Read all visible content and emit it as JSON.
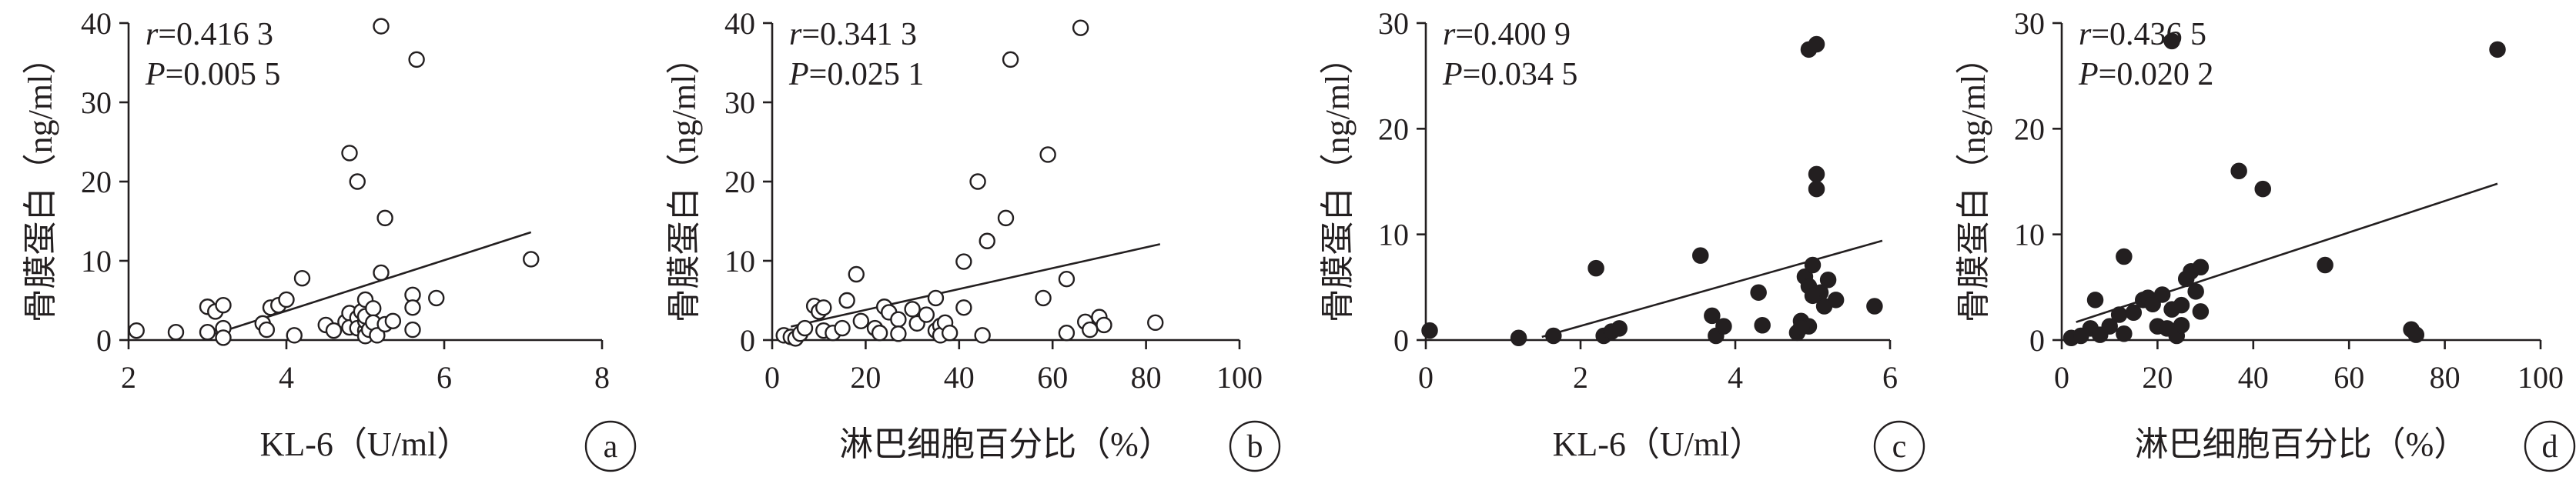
{
  "chart_data": [
    {
      "panel_label": "a",
      "type": "scatter",
      "marker": "open",
      "xlabel": "KL-6（U/ml）",
      "ylabel": "骨膜蛋白（ng/ml）",
      "xlim": [
        2,
        8
      ],
      "ylim": [
        0,
        40
      ],
      "xticks": [
        "2",
        "4",
        "6",
        "8"
      ],
      "yticks": [
        "0",
        "10",
        "20",
        "30",
        "40"
      ],
      "stats": {
        "r": "r=0.416 3",
        "p": "P=0.005 5"
      },
      "trend": [
        [
          3.1,
          0.8
        ],
        [
          7.1,
          13.6
        ]
      ],
      "points": [
        [
          2.1,
          1.2
        ],
        [
          2.6,
          1.0
        ],
        [
          3.0,
          4.2
        ],
        [
          3.0,
          1.0
        ],
        [
          3.1,
          3.6
        ],
        [
          3.2,
          4.4
        ],
        [
          3.2,
          1.5
        ],
        [
          3.2,
          0.3
        ],
        [
          3.7,
          2.1
        ],
        [
          3.75,
          1.3
        ],
        [
          3.8,
          4.1
        ],
        [
          3.9,
          4.4
        ],
        [
          4.0,
          5.1
        ],
        [
          4.1,
          0.6
        ],
        [
          4.2,
          7.8
        ],
        [
          4.5,
          1.9
        ],
        [
          4.6,
          1.2
        ],
        [
          4.75,
          2.3
        ],
        [
          4.8,
          3.4
        ],
        [
          4.8,
          1.6
        ],
        [
          4.8,
          23.6
        ],
        [
          4.9,
          20.0
        ],
        [
          4.9,
          2.8
        ],
        [
          4.9,
          1.5
        ],
        [
          4.95,
          3.6
        ],
        [
          5.0,
          1.2
        ],
        [
          5.0,
          0.5
        ],
        [
          5.0,
          2.4
        ],
        [
          5.0,
          5.1
        ],
        [
          5.0,
          3.0
        ],
        [
          5.05,
          1.3
        ],
        [
          5.1,
          4.0
        ],
        [
          5.1,
          2.2
        ],
        [
          5.15,
          0.6
        ],
        [
          5.2,
          8.5
        ],
        [
          5.2,
          39.6
        ],
        [
          5.25,
          15.4
        ],
        [
          5.25,
          2.0
        ],
        [
          5.35,
          2.4
        ],
        [
          5.6,
          5.7
        ],
        [
          5.6,
          4.1
        ],
        [
          5.6,
          1.3
        ],
        [
          5.65,
          35.4
        ],
        [
          5.9,
          5.3
        ],
        [
          7.1,
          10.2
        ]
      ]
    },
    {
      "panel_label": "b",
      "type": "scatter",
      "marker": "open",
      "xlabel": "淋巴细胞百分比（%）",
      "ylabel": "骨膜蛋白（ng/ml）",
      "xlim": [
        0,
        100
      ],
      "ylim": [
        0,
        40
      ],
      "xticks": [
        "0",
        "20",
        "40",
        "60",
        "80",
        "100"
      ],
      "yticks": [
        "0",
        "10",
        "20",
        "30",
        "40"
      ],
      "stats": {
        "r": "r=0.341 3",
        "p": "P=0.025 1"
      },
      "trend": [
        [
          4,
          1.7
        ],
        [
          83,
          12.1
        ]
      ],
      "points": [
        [
          2.5,
          0.6
        ],
        [
          4,
          0.4
        ],
        [
          5,
          0.2
        ],
        [
          6,
          0.8
        ],
        [
          7,
          1.5
        ],
        [
          9,
          4.3
        ],
        [
          10,
          3.6
        ],
        [
          11,
          4.1
        ],
        [
          11,
          1.2
        ],
        [
          13,
          0.9
        ],
        [
          15,
          1.5
        ],
        [
          16,
          5.0
        ],
        [
          18,
          8.3
        ],
        [
          19,
          2.4
        ],
        [
          22,
          1.5
        ],
        [
          23,
          0.9
        ],
        [
          24,
          4.2
        ],
        [
          25,
          3.5
        ],
        [
          27,
          2.6
        ],
        [
          27,
          0.8
        ],
        [
          30,
          3.9
        ],
        [
          31,
          2.1
        ],
        [
          33,
          3.2
        ],
        [
          35,
          1.2
        ],
        [
          35,
          5.3
        ],
        [
          36,
          1.8
        ],
        [
          36,
          0.6
        ],
        [
          37,
          2.2
        ],
        [
          38,
          0.9
        ],
        [
          41,
          4.1
        ],
        [
          41,
          9.9
        ],
        [
          44,
          20.0
        ],
        [
          45,
          0.6
        ],
        [
          46,
          12.5
        ],
        [
          50,
          15.4
        ],
        [
          51,
          35.4
        ],
        [
          58,
          5.3
        ],
        [
          59,
          23.4
        ],
        [
          63,
          0.9
        ],
        [
          63,
          7.7
        ],
        [
          66,
          39.4
        ],
        [
          67,
          2.3
        ],
        [
          68,
          1.3
        ],
        [
          70,
          2.9
        ],
        [
          71,
          1.9
        ],
        [
          82,
          2.2
        ]
      ]
    },
    {
      "panel_label": "c",
      "type": "scatter",
      "marker": "filled",
      "xlabel": "KL-6（U/ml）",
      "ylabel": "骨膜蛋白（ng/ml）",
      "xlim": [
        0,
        6
      ],
      "ylim": [
        0,
        30
      ],
      "xticks": [
        "0",
        "2",
        "4",
        "6"
      ],
      "yticks": [
        "0",
        "10",
        "20",
        "30"
      ],
      "stats": {
        "r": "r=0.400 9",
        "p": "P=0.034 5"
      },
      "trend": [
        [
          1.5,
          0.3
        ],
        [
          5.9,
          9.4
        ]
      ],
      "points": [
        [
          0.05,
          0.9
        ],
        [
          1.2,
          0.2
        ],
        [
          1.65,
          0.4
        ],
        [
          2.2,
          6.8
        ],
        [
          2.3,
          0.4
        ],
        [
          2.4,
          0.8
        ],
        [
          2.5,
          1.1
        ],
        [
          3.55,
          8.0
        ],
        [
          3.7,
          2.3
        ],
        [
          3.75,
          0.4
        ],
        [
          3.85,
          1.3
        ],
        [
          4.3,
          4.5
        ],
        [
          4.35,
          1.4
        ],
        [
          4.8,
          0.7
        ],
        [
          4.85,
          1.8
        ],
        [
          4.9,
          6.0
        ],
        [
          4.95,
          1.3
        ],
        [
          4.95,
          5.1
        ],
        [
          4.95,
          27.5
        ],
        [
          5.0,
          7.1
        ],
        [
          5.05,
          28.0
        ],
        [
          5.05,
          14.3
        ],
        [
          5.1,
          4.5
        ],
        [
          5.15,
          3.2
        ],
        [
          5.2,
          5.7
        ],
        [
          5.3,
          3.8
        ],
        [
          5.8,
          3.2
        ],
        [
          5.05,
          15.7
        ],
        [
          5.0,
          4.2
        ],
        [
          4.85,
          1.2
        ]
      ]
    },
    {
      "panel_label": "d",
      "type": "scatter",
      "marker": "filled",
      "xlabel": "淋巴细胞百分比（%）",
      "ylabel": "骨膜蛋白（ng/ml）",
      "xlim": [
        0,
        100
      ],
      "ylim": [
        0,
        30
      ],
      "xticks": [
        "0",
        "20",
        "40",
        "60",
        "80",
        "100"
      ],
      "yticks": [
        "0",
        "10",
        "20",
        "30"
      ],
      "stats": {
        "r": "r=0.436 5",
        "p": "P=0.020 2"
      },
      "trend": [
        [
          3,
          1.7
        ],
        [
          91,
          14.8
        ]
      ],
      "points": [
        [
          2,
          0.2
        ],
        [
          4,
          0.4
        ],
        [
          6,
          1.1
        ],
        [
          7,
          3.8
        ],
        [
          8,
          0.5
        ],
        [
          10,
          1.3
        ],
        [
          12,
          2.4
        ],
        [
          13,
          0.6
        ],
        [
          13,
          7.9
        ],
        [
          15,
          2.6
        ],
        [
          17,
          3.8
        ],
        [
          18,
          4.0
        ],
        [
          19,
          3.4
        ],
        [
          20,
          1.3
        ],
        [
          21,
          4.3
        ],
        [
          22,
          1.1
        ],
        [
          23,
          28.3
        ],
        [
          23,
          2.9
        ],
        [
          24,
          0.4
        ],
        [
          25,
          3.3
        ],
        [
          25,
          1.4
        ],
        [
          26,
          5.8
        ],
        [
          27,
          6.5
        ],
        [
          28,
          4.6
        ],
        [
          29,
          6.9
        ],
        [
          29,
          2.7
        ],
        [
          37,
          16.0
        ],
        [
          42,
          14.3
        ],
        [
          55,
          7.1
        ],
        [
          73,
          1.0
        ],
        [
          74,
          0.5
        ],
        [
          91,
          27.5
        ]
      ]
    }
  ]
}
